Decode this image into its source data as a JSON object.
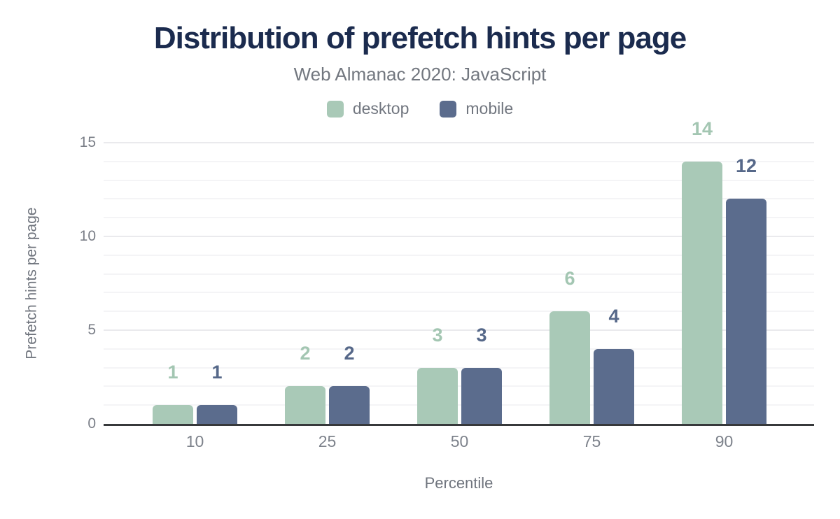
{
  "chart_data": {
    "type": "bar",
    "title": "Distribution of prefetch hints per page",
    "subtitle": "Web Almanac 2020: JavaScript",
    "categories": [
      "10",
      "25",
      "50",
      "75",
      "90"
    ],
    "series": [
      {
        "name": "desktop",
        "color": "#a9c9b7",
        "label_color": "#a3c6b2",
        "values": [
          1,
          2,
          3,
          6,
          14
        ]
      },
      {
        "name": "mobile",
        "color": "#5b6c8d",
        "label_color": "#566889",
        "values": [
          1,
          2,
          3,
          4,
          12
        ]
      }
    ],
    "xlabel": "Percentile",
    "ylabel": "Prefetch hints per page",
    "ylim": [
      0,
      15
    ],
    "yticks": [
      0,
      5,
      10,
      15
    ],
    "grid": "horizontal minor gridlines every 1 unit, major every 5 units",
    "legend_position": "top-center",
    "data_labels": true
  },
  "colors": {
    "title": "#1b2b4e",
    "subtitle": "#72777f",
    "tick_text": "#7a7e87",
    "axis_title_text": "#6f747d",
    "axis_line": "#37393b",
    "grid_minor": "#f4f4f6",
    "grid_major": "#eaeaed",
    "background": "#ffffff"
  }
}
